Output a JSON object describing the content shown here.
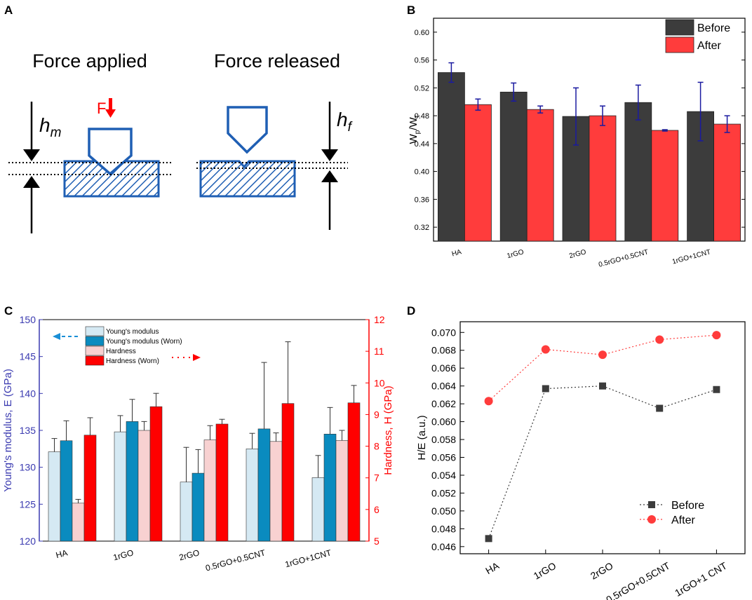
{
  "colors": {
    "blue_outline": "#1f5fb4",
    "red": "#ff0000",
    "dark_gray": "#3c3c3c",
    "bright_red": "#ff3c3c",
    "light_blue": "#d5e9f3",
    "teal": "#0a8bbf",
    "light_pink": "#f8d1d1",
    "e_axis_blue": "#3a3ab0",
    "navy_error": "#1a1aa0"
  },
  "panel_a": {
    "letter": "A",
    "title_applied": "Force applied",
    "title_released": "Force released",
    "force_label": "F",
    "hm_base": "h",
    "hm_sub": "m",
    "hf_base": "h",
    "hf_sub": "f"
  },
  "panel_b": {
    "letter": "B"
  },
  "panel_c": {
    "letter": "C"
  },
  "panel_d": {
    "letter": "D"
  },
  "chart_data": [
    {
      "id": "B",
      "type": "bar",
      "title": "",
      "xlabel": "",
      "ylabel_main": "W",
      "ylabel_sub1": "p",
      "ylabel_sep": "/W",
      "ylabel_sub2": "t",
      "categories": [
        "HA",
        "1rGO",
        "2rGO",
        "0.5rGO+0.5CNT",
        "1rGO+1CNT"
      ],
      "ylim": [
        0.3,
        0.62
      ],
      "yticks": [
        "0.32",
        "0.36",
        "0.40",
        "0.44",
        "0.48",
        "0.52",
        "0.56",
        "0.60"
      ],
      "ytick_values": [
        0.32,
        0.36,
        0.4,
        0.44,
        0.48,
        0.52,
        0.56,
        0.6
      ],
      "legend_position": "top-right",
      "series": [
        {
          "name": "Before",
          "values": [
            0.542,
            0.514,
            0.479,
            0.499,
            0.486
          ],
          "errors": [
            0.014,
            0.013,
            0.041,
            0.025,
            0.042
          ]
        },
        {
          "name": "After",
          "values": [
            0.496,
            0.489,
            0.48,
            0.459,
            0.468
          ],
          "errors": [
            0.008,
            0.005,
            0.014,
            0.001,
            0.012
          ]
        }
      ]
    },
    {
      "id": "C",
      "type": "bar",
      "title": "",
      "xlabel": "",
      "ylabel_left": "Young's modulus, E (GPa)",
      "ylabel_right": "Hardness, H (GPa)",
      "categories": [
        "HA",
        "1rGO",
        "2rGO",
        "0.5rGO+0.5CNT",
        "1rGO+1CNT"
      ],
      "ylim_left": [
        120,
        150
      ],
      "ylim_right": [
        5,
        12
      ],
      "yticks_left": [
        "120",
        "125",
        "130",
        "135",
        "140",
        "145",
        "150"
      ],
      "yticks_right": [
        "5",
        "6",
        "7",
        "8",
        "9",
        "10",
        "11",
        "12"
      ],
      "legend_position": "top-left",
      "series": [
        {
          "name": "Young's modulus",
          "axis": "left",
          "values": [
            132.1,
            134.8,
            128.0,
            132.5,
            128.6
          ],
          "errors": [
            1.8,
            2.2,
            4.7,
            2.1,
            3.0
          ]
        },
        {
          "name": "Young's modulus (Worn)",
          "axis": "left",
          "values": [
            133.6,
            136.2,
            129.2,
            135.2,
            134.5
          ],
          "errors": [
            2.7,
            3.0,
            3.2,
            9.0,
            3.6
          ]
        },
        {
          "name": "Hardness",
          "axis": "right",
          "values": [
            6.2,
            8.5,
            8.2,
            8.15,
            8.18
          ],
          "errors": [
            0.12,
            0.28,
            0.45,
            0.27,
            0.32
          ]
        },
        {
          "name": "Hardness (Worn)",
          "axis": "right",
          "values": [
            8.35,
            9.25,
            8.7,
            9.35,
            9.37
          ],
          "errors": [
            0.55,
            0.42,
            0.15,
            1.95,
            0.55
          ]
        }
      ]
    },
    {
      "id": "D",
      "type": "line",
      "title": "",
      "xlabel": "",
      "ylabel": "H/E (a.u.)",
      "categories": [
        "HA",
        "1rGO",
        "2rGO",
        "0.5rGO+0.5CNT",
        "1rGO+1 CNT"
      ],
      "ylim": [
        0.0452,
        0.0712
      ],
      "yticks": [
        "0.046",
        "0.048",
        "0.050",
        "0.052",
        "0.054",
        "0.056",
        "0.058",
        "0.060",
        "0.062",
        "0.064",
        "0.066",
        "0.068",
        "0.070"
      ],
      "ytick_values": [
        0.046,
        0.048,
        0.05,
        0.052,
        0.054,
        0.056,
        0.058,
        0.06,
        0.062,
        0.064,
        0.066,
        0.068,
        0.07
      ],
      "legend_position": "bottom-right",
      "series": [
        {
          "name": "Before",
          "marker": "square",
          "values": [
            0.0469,
            0.0637,
            0.064,
            0.0615,
            0.0636
          ]
        },
        {
          "name": "After",
          "marker": "circle",
          "values": [
            0.0623,
            0.0681,
            0.0675,
            0.0692,
            0.0697
          ]
        }
      ]
    }
  ]
}
